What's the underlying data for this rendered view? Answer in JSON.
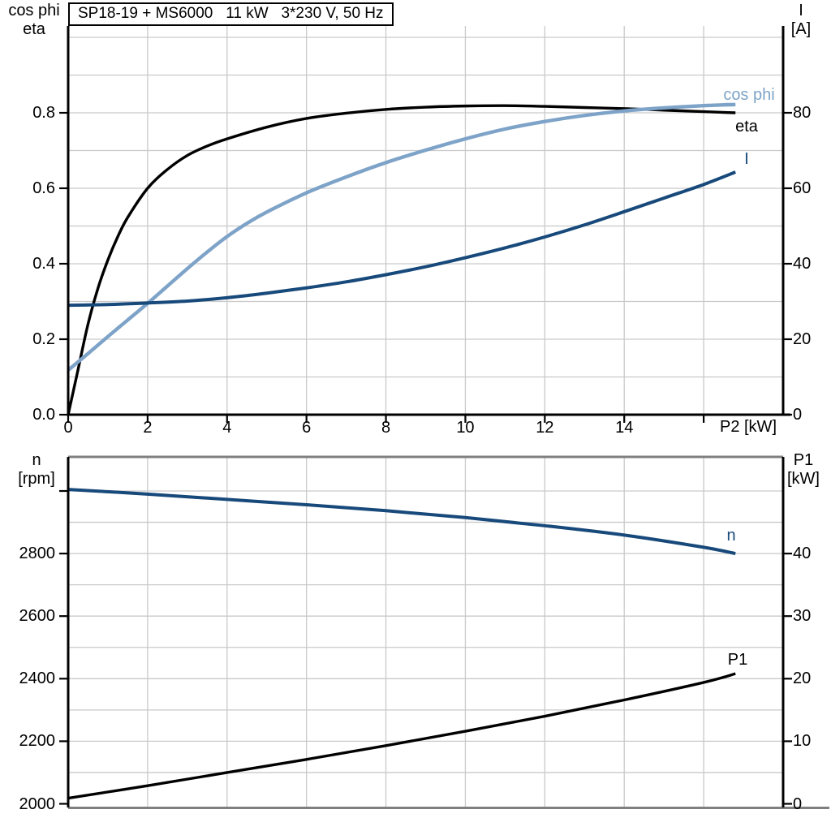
{
  "title": "SP18-19 + MS6000   11 kW   3*230 V, 50 Hz",
  "colors": {
    "black": "#000000",
    "light_blue": "#7EA3C8",
    "dark_blue": "#17497B",
    "grid": "#C9C9C9",
    "border": "#7F7F7F"
  },
  "axis_labels": {
    "top_left_line1": "cos phi",
    "top_left_line2": "eta",
    "top_right_line1": "I",
    "top_right_line2": "[A]",
    "x_axis": "P2 [kW]",
    "bottom_left_line1": "n",
    "bottom_left_line2": "[rpm]",
    "bottom_right_line1": "P1",
    "bottom_right_line2": "[kW]"
  },
  "curve_labels": {
    "cos_phi": "cos phi",
    "eta": "eta",
    "current": "I",
    "speed": "n",
    "p1": "P1"
  },
  "chart_data": [
    {
      "type": "line",
      "title": "SP18-19 + MS6000   11 kW   3*230 V, 50 Hz",
      "xlabel": "P2 [kW]",
      "ylabel_left": "cos phi / eta",
      "ylabel_right": "I [A]",
      "xlim": [
        0,
        18
      ],
      "ylim_left": [
        0,
        1.03
      ],
      "ylim_right": [
        0,
        103
      ],
      "grid": "on",
      "x_ticks": {
        "values": [
          0,
          2,
          4,
          6,
          8,
          10,
          12,
          14
        ],
        "labels": [
          "0",
          "2",
          "4",
          "6",
          "8",
          "10",
          "12",
          "14"
        ],
        "extra": [
          16
        ]
      },
      "y_left": {
        "values": [
          0,
          0.2,
          0.4,
          0.6,
          0.8
        ],
        "labels": [
          "0.0",
          "0.2",
          "0.4",
          "0.6",
          "0.8"
        ],
        "extra": []
      },
      "y_right": {
        "values": [
          0,
          20,
          40,
          60,
          80
        ],
        "labels": [
          "0",
          "20",
          "40",
          "60",
          "80"
        ],
        "extra": []
      },
      "x_grid": [
        2,
        4,
        6,
        8,
        10,
        12,
        14,
        16
      ],
      "y_grid": [
        0.1,
        0.2,
        0.3,
        0.4,
        0.5,
        0.6,
        0.7,
        0.8,
        0.9,
        1.0
      ],
      "series": [
        {
          "name": "eta",
          "axis": "left",
          "color": "#000000",
          "x": [
            0,
            0.25,
            0.5,
            0.75,
            1,
            1.25,
            1.5,
            2,
            2.5,
            3,
            3.5,
            4,
            5,
            6,
            7,
            8,
            9,
            10,
            11,
            12,
            13,
            14,
            15,
            16,
            16.8
          ],
          "values": [
            0,
            0.12,
            0.24,
            0.335,
            0.41,
            0.472,
            0.523,
            0.6,
            0.65,
            0.687,
            0.712,
            0.731,
            0.762,
            0.785,
            0.799,
            0.809,
            0.815,
            0.818,
            0.819,
            0.817,
            0.814,
            0.811,
            0.807,
            0.803,
            0.8
          ]
        },
        {
          "name": "cos phi",
          "axis": "left",
          "color": "#7EA3C8",
          "x": [
            0,
            0.5,
            1,
            1.5,
            2,
            2.5,
            3,
            3.5,
            4,
            4.5,
            5,
            6,
            7,
            8,
            9,
            10,
            11,
            12,
            13,
            14,
            15,
            16,
            16.8
          ],
          "values": [
            0.118,
            0.162,
            0.207,
            0.251,
            0.295,
            0.341,
            0.387,
            0.431,
            0.472,
            0.507,
            0.537,
            0.588,
            0.63,
            0.668,
            0.701,
            0.731,
            0.757,
            0.777,
            0.793,
            0.805,
            0.813,
            0.819,
            0.822
          ]
        },
        {
          "name": "I",
          "axis": "right",
          "color": "#17497B",
          "x": [
            0,
            1,
            2,
            3,
            4,
            5,
            6,
            7,
            8,
            9,
            10,
            11,
            12,
            13,
            14,
            15,
            16,
            16.8
          ],
          "values": [
            29,
            29.2,
            29.6,
            30.1,
            31,
            32.2,
            33.6,
            35.2,
            37.1,
            39.2,
            41.6,
            44.2,
            47.1,
            50.3,
            53.8,
            57.4,
            61,
            64.3
          ]
        }
      ]
    },
    {
      "type": "line",
      "title": "",
      "xlabel": "",
      "ylabel_left": "n [rpm]",
      "ylabel_right": "P1 [kW]",
      "xlim": [
        0,
        18
      ],
      "ylim_left": [
        2000,
        3109
      ],
      "ylim_right": [
        0,
        55.4
      ],
      "grid": "on",
      "x_ticks": {
        "values": [],
        "labels": [],
        "extra": []
      },
      "y_left": {
        "values": [
          2000,
          2200,
          2400,
          2600,
          2800
        ],
        "labels": [
          "2000",
          "2200",
          "2400",
          "2600",
          "2800"
        ],
        "extra": [
          3000
        ]
      },
      "y_right": {
        "values": [
          0,
          10,
          20,
          30,
          40
        ],
        "labels": [
          "0",
          "10",
          "20",
          "30",
          "40"
        ],
        "extra": []
      },
      "x_grid": [
        2,
        4,
        6,
        8,
        10,
        12,
        14,
        16
      ],
      "y_grid": [
        2100,
        2200,
        2300,
        2400,
        2500,
        2600,
        2700,
        2800,
        2900,
        3000
      ],
      "series": [
        {
          "name": "n",
          "axis": "left",
          "color": "#17497B",
          "x": [
            0,
            2,
            4,
            6,
            8,
            10,
            12,
            14,
            16,
            16.8
          ],
          "values": [
            3005,
            2990,
            2973,
            2956,
            2937,
            2915,
            2889,
            2859,
            2820,
            2800
          ]
        },
        {
          "name": "P1",
          "axis": "right",
          "color": "#000000",
          "x": [
            0,
            2,
            4,
            6,
            8,
            10,
            12,
            14,
            16,
            16.8
          ],
          "values": [
            0.9,
            2.9,
            5.0,
            7.1,
            9.3,
            11.6,
            14.0,
            16.6,
            19.4,
            20.8
          ]
        }
      ]
    }
  ]
}
